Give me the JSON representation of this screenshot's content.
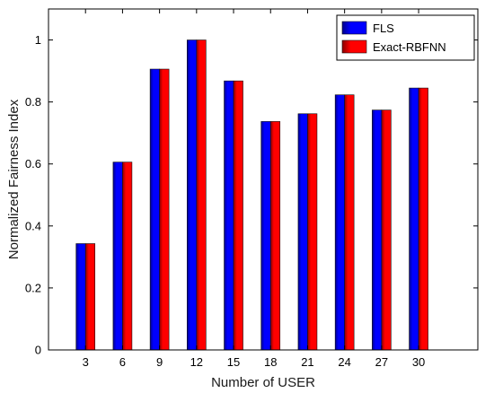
{
  "chart_data": {
    "type": "bar",
    "title": "",
    "xlabel": "Number of USER",
    "ylabel": "Normalized Fairness Index",
    "categories": [
      "3",
      "6",
      "9",
      "12",
      "15",
      "18",
      "21",
      "24",
      "27",
      "30"
    ],
    "ylim": [
      0,
      1.1
    ],
    "yticks": [
      "0",
      "0.2",
      "0.4",
      "0.6",
      "0.8",
      "1"
    ],
    "grid": false,
    "legend_position": "top-right",
    "series": [
      {
        "name": "FLS",
        "color": "#0000ff",
        "values": [
          0.343,
          0.606,
          0.906,
          1.0,
          0.868,
          0.737,
          0.762,
          0.823,
          0.774,
          0.845
        ]
      },
      {
        "name": "Exact-RBFNN",
        "color": "#ff0000",
        "values": [
          0.343,
          0.606,
          0.906,
          1.0,
          0.868,
          0.737,
          0.762,
          0.823,
          0.774,
          0.845
        ]
      }
    ]
  }
}
